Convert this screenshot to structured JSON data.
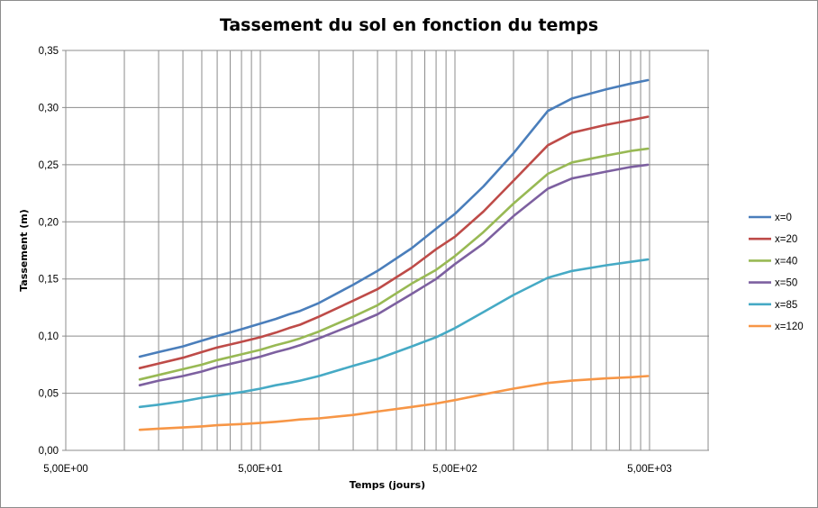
{
  "chart_data": {
    "type": "line",
    "title": "Tassement du sol en fonction du temps",
    "xlabel": "Temps (jours)",
    "ylabel": "Tassement (m)",
    "x_scale": "log",
    "xlim": [
      5,
      5000
    ],
    "ylim": [
      0,
      0.35
    ],
    "y_ticks": [
      "0,00",
      "0,05",
      "0,10",
      "0,15",
      "0,20",
      "0,25",
      "0,30",
      "0,35"
    ],
    "x_ticks": [
      "5,00E+00",
      "5,00E+01",
      "5,00E+02",
      "5,00E+03"
    ],
    "grid": true,
    "legend_position": "right",
    "x": [
      12,
      15,
      20,
      25,
      30,
      40,
      50,
      60,
      70,
      80,
      100,
      150,
      200,
      300,
      400,
      500,
      700,
      1000,
      1500,
      2000,
      3000,
      4000,
      4900
    ],
    "series": [
      {
        "name": "x=0",
        "color": "#4a7ebb",
        "values": [
          0.082,
          0.086,
          0.091,
          0.096,
          0.1,
          0.106,
          0.111,
          0.115,
          0.119,
          0.122,
          0.129,
          0.145,
          0.157,
          0.177,
          0.194,
          0.207,
          0.231,
          0.26,
          0.297,
          0.308,
          0.316,
          0.321,
          0.324
        ]
      },
      {
        "name": "x=20",
        "color": "#be4b48",
        "values": [
          0.072,
          0.076,
          0.081,
          0.086,
          0.09,
          0.095,
          0.099,
          0.103,
          0.107,
          0.11,
          0.117,
          0.131,
          0.141,
          0.16,
          0.176,
          0.187,
          0.209,
          0.236,
          0.267,
          0.278,
          0.285,
          0.289,
          0.292
        ]
      },
      {
        "name": "x=40",
        "color": "#98b954",
        "values": [
          0.062,
          0.066,
          0.071,
          0.075,
          0.079,
          0.084,
          0.088,
          0.092,
          0.095,
          0.098,
          0.104,
          0.117,
          0.127,
          0.146,
          0.158,
          0.17,
          0.191,
          0.216,
          0.242,
          0.252,
          0.258,
          0.262,
          0.264
        ]
      },
      {
        "name": "x=50",
        "color": "#7d60a0",
        "values": [
          0.057,
          0.061,
          0.065,
          0.069,
          0.073,
          0.078,
          0.082,
          0.086,
          0.089,
          0.092,
          0.098,
          0.11,
          0.119,
          0.137,
          0.15,
          0.163,
          0.181,
          0.205,
          0.229,
          0.238,
          0.244,
          0.248,
          0.25
        ]
      },
      {
        "name": "x=85",
        "color": "#46aac5",
        "values": [
          0.038,
          0.04,
          0.043,
          0.046,
          0.048,
          0.051,
          0.054,
          0.057,
          0.059,
          0.061,
          0.065,
          0.074,
          0.08,
          0.091,
          0.099,
          0.107,
          0.121,
          0.136,
          0.151,
          0.157,
          0.162,
          0.165,
          0.167
        ]
      },
      {
        "name": "x=120",
        "color": "#f79646",
        "values": [
          0.018,
          0.019,
          0.02,
          0.021,
          0.022,
          0.023,
          0.024,
          0.025,
          0.026,
          0.027,
          0.028,
          0.031,
          0.034,
          0.038,
          0.041,
          0.044,
          0.049,
          0.054,
          0.059,
          0.061,
          0.063,
          0.064,
          0.065
        ]
      }
    ]
  }
}
